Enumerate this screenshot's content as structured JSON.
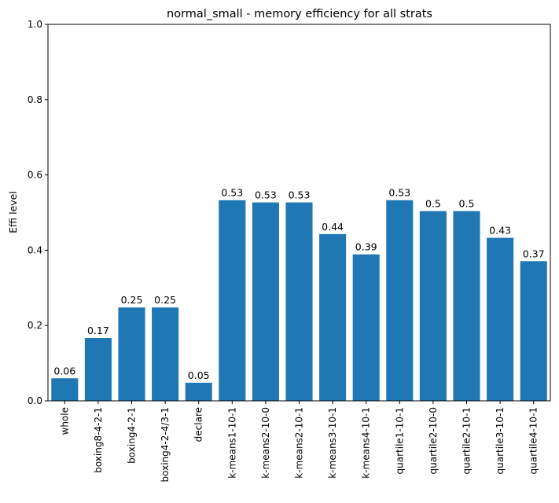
{
  "chart_data": {
    "type": "bar",
    "title": "normal_small - memory efficiency for all strats",
    "ylabel": "Effi level",
    "xlabel": "",
    "ylim": [
      0,
      1
    ],
    "yticks": [
      0.0,
      0.2,
      0.4,
      0.6,
      0.8,
      1.0
    ],
    "ytick_labels": [
      "0.0",
      "0.2",
      "0.4",
      "0.6",
      "0.8",
      "1.0"
    ],
    "grid": false,
    "bar_color": "#1f77b4",
    "categories": [
      "whole",
      "boxing8-4-2-1",
      "boxing4-2-1",
      "boxing4-2-4/3-1",
      "declare",
      "k-means1-10-1",
      "k-means2-10-0",
      "k-means2-10-1",
      "k-means3-10-1",
      "k-means4-10-1",
      "quartile1-10-1",
      "quartile2-10-0",
      "quartile2-10-1",
      "quartile3-10-1",
      "quartile4-10-1"
    ],
    "values": [
      0.06,
      0.167,
      0.248,
      0.248,
      0.048,
      0.533,
      0.527,
      0.527,
      0.443,
      0.389,
      0.533,
      0.504,
      0.504,
      0.433,
      0.371
    ],
    "data_labels": [
      "0.06",
      "0.17",
      "0.25",
      "0.25",
      "0.05",
      "0.53",
      "0.53",
      "0.53",
      "0.44",
      "0.39",
      "0.53",
      "0.5",
      "0.5",
      "0.43",
      "0.37"
    ]
  }
}
